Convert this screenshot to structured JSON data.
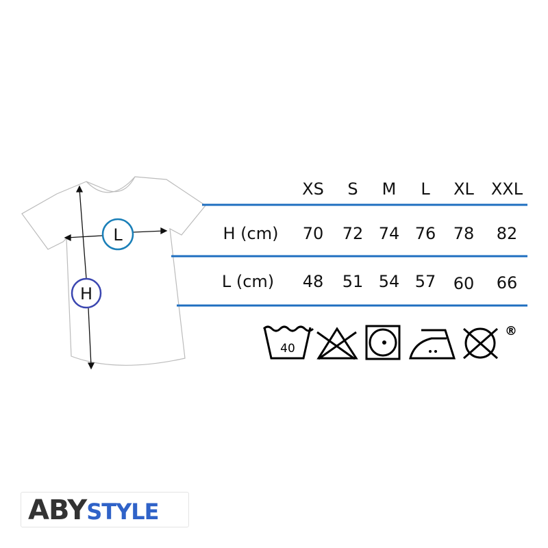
{
  "diagram": {
    "height_marker": "H",
    "width_marker": "L"
  },
  "table": {
    "sizes": [
      "XS",
      "S",
      "M",
      "L",
      "XL",
      "XXL"
    ],
    "rows": [
      {
        "label": "H (cm)",
        "values": [
          "70",
          "72",
          "74",
          "76",
          "78",
          "82"
        ]
      },
      {
        "label": "L (cm)",
        "values": [
          "48",
          "51",
          "54",
          "57",
          "60",
          "66"
        ]
      }
    ]
  },
  "care": {
    "icons": [
      "wash-40-icon",
      "no-bleach-icon",
      "tumble-dry-icon",
      "iron-medium-icon",
      "no-dry-clean-icon"
    ],
    "wash_temp": "40",
    "registered": "®"
  },
  "brand": {
    "part1": "ABY",
    "part2": "STYLE"
  },
  "colors": {
    "line": "#1f6fc0",
    "h_circle": "#3a46b0",
    "l_circle": "#1a7fb8",
    "brand_blue": "#2f62c8"
  }
}
